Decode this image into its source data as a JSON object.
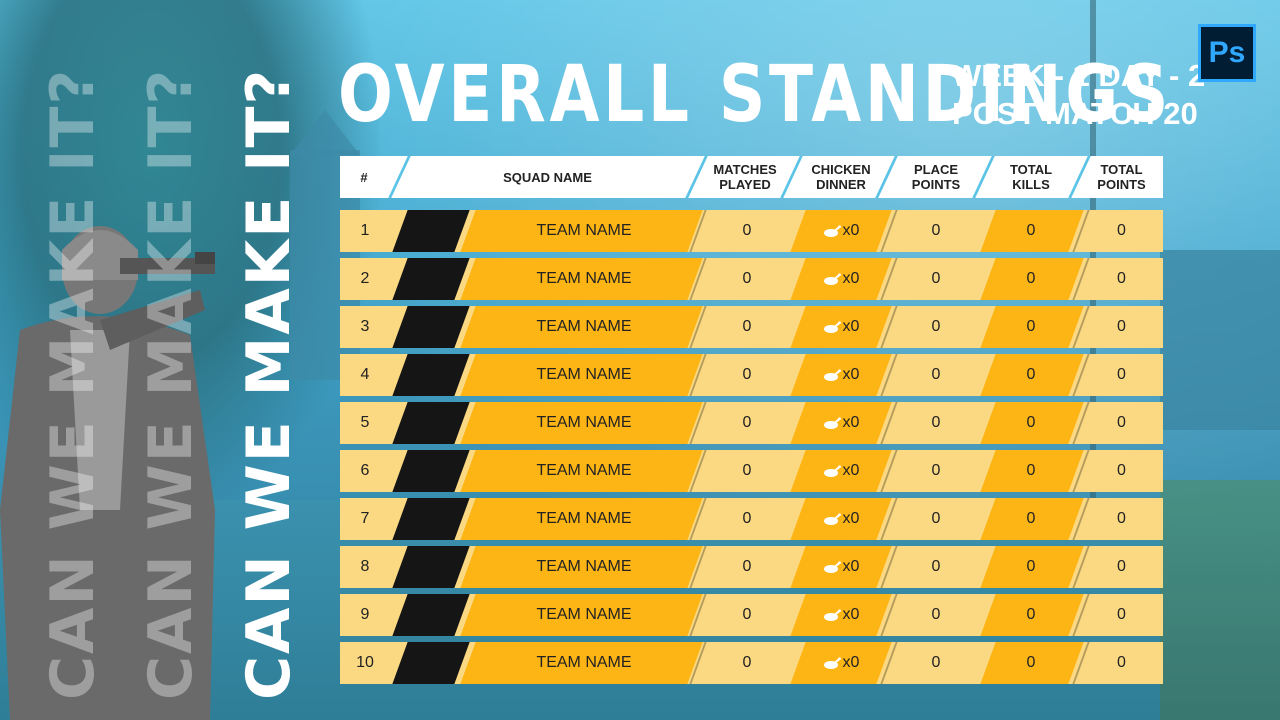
{
  "slogans": [
    "CAN WE MAKE IT?",
    "CAN WE MAKE IT?",
    "CAN WE MAKE IT?"
  ],
  "title": "OVERALL STANDINGS",
  "subtitle_week": "WEEK - 1 DAY - 2",
  "subtitle_match": "POST MATCH 20",
  "app_badge": "Ps",
  "colors": {
    "accent_orange": "#fdb515",
    "row_light": "#fbd983",
    "sky": "#5bc4e6"
  },
  "icons": {
    "chicken": "roast-chicken-icon"
  },
  "columns": {
    "rank": "#",
    "squad": "SQUAD NAME",
    "matches": [
      "MATCHES",
      "PLAYED"
    ],
    "chicken": [
      "CHICKEN",
      "DINNER"
    ],
    "place": [
      "PLACE",
      "POINTS"
    ],
    "kills": [
      "TOTAL",
      "KILLS"
    ],
    "total": [
      "TOTAL",
      "POINTS"
    ]
  },
  "rows": [
    {
      "rank": "1",
      "team": "TEAM NAME",
      "matches": "0",
      "chicken": "x0",
      "place": "0",
      "kills": "0",
      "total": "0"
    },
    {
      "rank": "2",
      "team": "TEAM NAME",
      "matches": "0",
      "chicken": "x0",
      "place": "0",
      "kills": "0",
      "total": "0"
    },
    {
      "rank": "3",
      "team": "TEAM NAME",
      "matches": "0",
      "chicken": "x0",
      "place": "0",
      "kills": "0",
      "total": "0"
    },
    {
      "rank": "4",
      "team": "TEAM NAME",
      "matches": "0",
      "chicken": "x0",
      "place": "0",
      "kills": "0",
      "total": "0"
    },
    {
      "rank": "5",
      "team": "TEAM NAME",
      "matches": "0",
      "chicken": "x0",
      "place": "0",
      "kills": "0",
      "total": "0"
    },
    {
      "rank": "6",
      "team": "TEAM NAME",
      "matches": "0",
      "chicken": "x0",
      "place": "0",
      "kills": "0",
      "total": "0"
    },
    {
      "rank": "7",
      "team": "TEAM NAME",
      "matches": "0",
      "chicken": "x0",
      "place": "0",
      "kills": "0",
      "total": "0"
    },
    {
      "rank": "8",
      "team": "TEAM NAME",
      "matches": "0",
      "chicken": "x0",
      "place": "0",
      "kills": "0",
      "total": "0"
    },
    {
      "rank": "9",
      "team": "TEAM NAME",
      "matches": "0",
      "chicken": "x0",
      "place": "0",
      "kills": "0",
      "total": "0"
    },
    {
      "rank": "10",
      "team": "TEAM NAME",
      "matches": "0",
      "chicken": "x0",
      "place": "0",
      "kills": "0",
      "total": "0"
    }
  ]
}
